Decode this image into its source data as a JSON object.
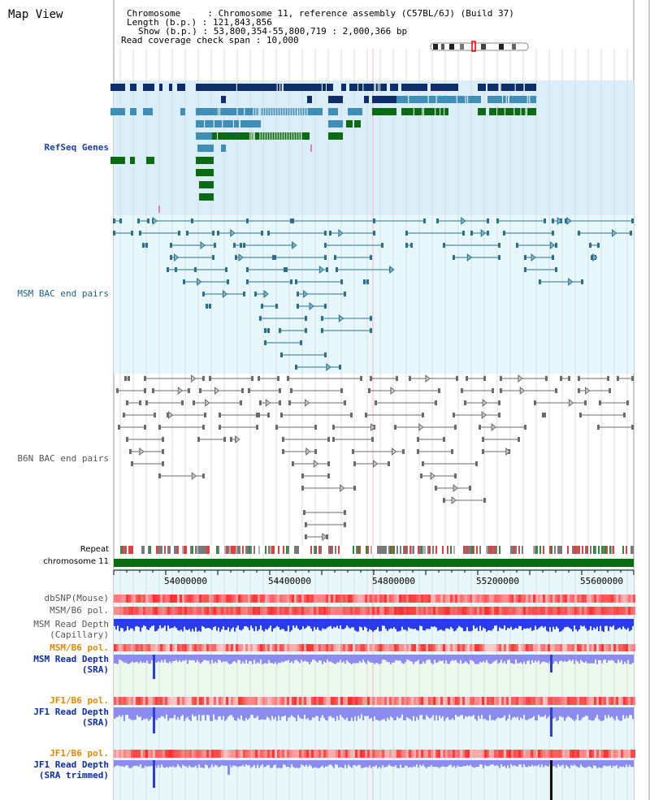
{
  "header": {
    "title": "Map View",
    "chromosome_label": "Chromosome",
    "chromosome_value": "Chromosome 11, reference assembly (C57BL/6J) (Build 37)",
    "length_label": "Length (b.p.)",
    "length_value": "121,843,856",
    "show_label": "Show (b.p.)",
    "show_value": "53,800,354-55,800,719 : 2,000,366 bp",
    "coverage_label": "Read coverage check span",
    "coverage_value": "10,000"
  },
  "tracks": {
    "refseq": "RefSeq Genes",
    "msm_bac": "MSM BAC end pairs",
    "b6n_bac": "B6N BAC end pairs",
    "repeat": "Repeat",
    "chromosome": "chromosome 11",
    "dbsnp": "dbSNP(Mouse)",
    "msm_b6_pol": "MSM/B6 pol.",
    "msm_read_depth_cap_1": "MSM Read Depth",
    "msm_read_depth_cap_2": "(Capillary)",
    "msm_b6_pol_2": "MSM/B6 pol.",
    "msm_read_depth_sra_1": "MSM Read Depth",
    "msm_read_depth_sra_2": "(SRA)",
    "jf1_b6_pol": "JF1/B6 pol.",
    "jf1_read_depth_sra_1": "JF1 Read Depth",
    "jf1_read_depth_sra_2": "(SRA)",
    "jf1_b6_pol_2": "JF1/B6 pol.",
    "jf1_read_depth_trim_1": "JF1 Read Depth",
    "jf1_read_depth_trim_2": "(SRA trimmed)"
  },
  "axis": {
    "ticks": [
      "54000000",
      "54400000",
      "54800000",
      "55200000",
      "55600000"
    ]
  },
  "colors": {
    "refseq_bg": "#dbeffa",
    "msm_bg": "#e6f8fb",
    "gene_navy": "#0d2d6b",
    "gene_teal": "#3f8eb8",
    "gene_green": "#0a6b12",
    "msm_line": "#2b6f8f",
    "b6n_line": "#6b6b6b",
    "chromosome_bar": "#0a6b12",
    "snp_red": "#f05050",
    "depth_blue": "#2a3ce8",
    "depth_lavender": "#8c8cf0"
  }
}
